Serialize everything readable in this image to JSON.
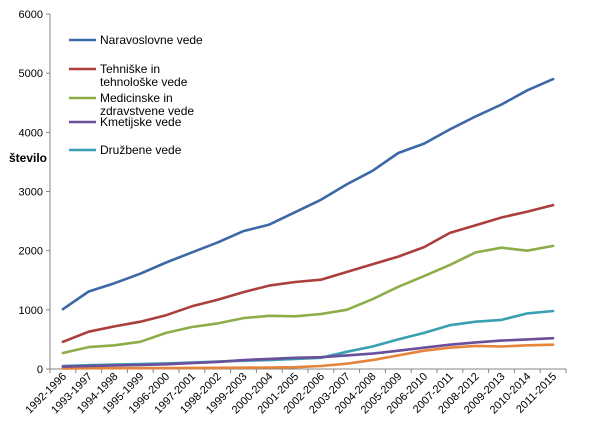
{
  "chart_data": {
    "type": "line",
    "title": "",
    "xlabel": "",
    "ylabel": "število",
    "ylim": [
      0,
      6000
    ],
    "yticks": [
      "0",
      "1000",
      "2000",
      "3000",
      "4000",
      "5000",
      "6000"
    ],
    "grid": false,
    "legend_position": "top-left",
    "categories": [
      "1992-1996",
      "1993-1997",
      "1994-1998",
      "1995-1999",
      "1996-2000",
      "1997-2001",
      "1998-2002",
      "1999-2003",
      "2000-2004",
      "2001-2005",
      "2002-2006",
      "2003-2007",
      "2004-2008",
      "2005-2009",
      "2006-2010",
      "2007-2011",
      "2008-2012",
      "2009-2013",
      "2010-2014",
      "2011-2015"
    ],
    "series": [
      {
        "name": "Naravoslovne vede",
        "color": "#3C68A6",
        "values": [
          1010,
          1310,
          1450,
          1610,
          1800,
          1970,
          2140,
          2330,
          2440,
          2650,
          2860,
          3120,
          3350,
          3650,
          3810,
          4050,
          4270,
          4470,
          4710,
          4900
        ]
      },
      {
        "name": "Tehniške in tehnološke vede",
        "color": "#AA3F3C",
        "values": [
          460,
          630,
          720,
          800,
          910,
          1060,
          1170,
          1300,
          1410,
          1470,
          1510,
          1640,
          1770,
          1900,
          2060,
          2300,
          2430,
          2560,
          2660,
          2770
        ]
      },
      {
        "name": "Medicinske in zdravstvene vede",
        "color": "#8BAE49",
        "values": [
          270,
          370,
          400,
          460,
          610,
          710,
          770,
          860,
          900,
          890,
          930,
          1000,
          1180,
          1390,
          1570,
          1760,
          1970,
          2050,
          2000,
          2080
        ]
      },
      {
        "name": "Kmetijske vede",
        "color": "#6A4F9A",
        "values": [
          40,
          50,
          60,
          70,
          80,
          100,
          120,
          150,
          170,
          190,
          200,
          230,
          260,
          310,
          360,
          410,
          450,
          480,
          500,
          520
        ]
      },
      {
        "name": "Družbene vede",
        "color": "#3A9FB2",
        "values": [
          50,
          65,
          75,
          85,
          95,
          110,
          125,
          140,
          150,
          170,
          190,
          290,
          380,
          500,
          610,
          740,
          800,
          830,
          940,
          980
        ]
      },
      {
        "name": "",
        "color": "#E5843A",
        "values": [
          10,
          12,
          14,
          15,
          16,
          18,
          20,
          22,
          25,
          30,
          50,
          90,
          150,
          230,
          310,
          360,
          390,
          380,
          400,
          410
        ]
      }
    ]
  }
}
